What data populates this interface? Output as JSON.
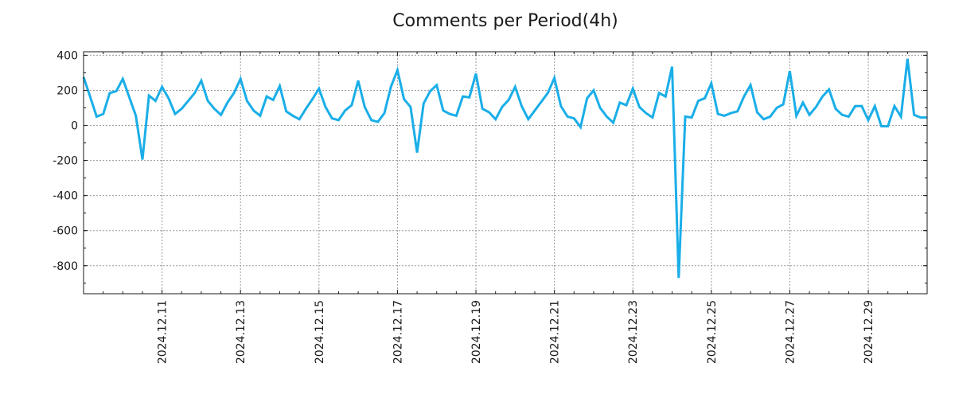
{
  "chart_data": {
    "type": "line",
    "title": "Comments per Period(4h)",
    "xlabel": "",
    "ylabel": "",
    "ylim": [
      -960,
      420
    ],
    "xlim": [
      0,
      129
    ],
    "y_ticks": [
      400,
      200,
      0,
      -200,
      -400,
      -600,
      -800
    ],
    "y_tick_labels": [
      "400",
      "200",
      "0",
      "-200",
      "-400",
      "-600",
      "-800"
    ],
    "x_ticks": [
      12,
      24,
      36,
      48,
      60,
      72,
      84,
      96,
      108,
      120
    ],
    "x_tick_labels": [
      "2024.12.11",
      "2024.12.13",
      "2024.12.15",
      "2024.12.17",
      "2024.12.19",
      "2024.12.21",
      "2024.12.23",
      "2024.12.25",
      "2024.12.27",
      "2024.12.29"
    ],
    "grid": true,
    "line_color": "#1aaee8",
    "series": [
      {
        "name": "Comments",
        "x": [
          0,
          1,
          2,
          3,
          4,
          5,
          6,
          7,
          8,
          9,
          10,
          11,
          12,
          13,
          14,
          15,
          16,
          17,
          18,
          19,
          20,
          21,
          22,
          23,
          24,
          25,
          26,
          27,
          28,
          29,
          30,
          31,
          32,
          33,
          34,
          35,
          36,
          37,
          38,
          39,
          40,
          41,
          42,
          43,
          44,
          45,
          46,
          47,
          48,
          49,
          50,
          51,
          52,
          53,
          54,
          55,
          56,
          57,
          58,
          59,
          60,
          61,
          62,
          63,
          64,
          65,
          66,
          67,
          68,
          69,
          70,
          71,
          72,
          73,
          74,
          75,
          76,
          77,
          78,
          79,
          80,
          81,
          82,
          83,
          84,
          85,
          86,
          87,
          88,
          89,
          90,
          91,
          92,
          93,
          94,
          95,
          96,
          97,
          98,
          99,
          100,
          101,
          102,
          103,
          104,
          105,
          106,
          107,
          108,
          109,
          110,
          111,
          112,
          113,
          114,
          115,
          116,
          117,
          118,
          119,
          120,
          121,
          122,
          123,
          124,
          125,
          126,
          127,
          128,
          129
        ],
        "values": [
          275,
          165,
          50,
          65,
          185,
          195,
          265,
          160,
          55,
          -195,
          170,
          140,
          220,
          155,
          65,
          95,
          140,
          185,
          255,
          140,
          95,
          60,
          130,
          185,
          265,
          140,
          85,
          55,
          165,
          145,
          225,
          80,
          55,
          35,
          95,
          150,
          210,
          105,
          40,
          30,
          85,
          115,
          255,
          105,
          30,
          20,
          70,
          220,
          315,
          150,
          105,
          -155,
          125,
          195,
          230,
          85,
          65,
          55,
          165,
          160,
          295,
          95,
          75,
          35,
          105,
          145,
          220,
          110,
          35,
          85,
          135,
          185,
          270,
          110,
          50,
          40,
          -10,
          155,
          200,
          100,
          50,
          15,
          130,
          115,
          210,
          105,
          70,
          45,
          185,
          165,
          335,
          -870,
          50,
          45,
          140,
          155,
          240,
          65,
          55,
          70,
          80,
          165,
          230,
          75,
          35,
          50,
          100,
          120,
          310,
          55,
          130,
          60,
          105,
          165,
          205,
          95,
          60,
          50,
          110,
          110,
          30,
          110,
          -5,
          -5,
          110,
          50,
          380,
          60,
          45,
          45
        ]
      }
    ]
  }
}
